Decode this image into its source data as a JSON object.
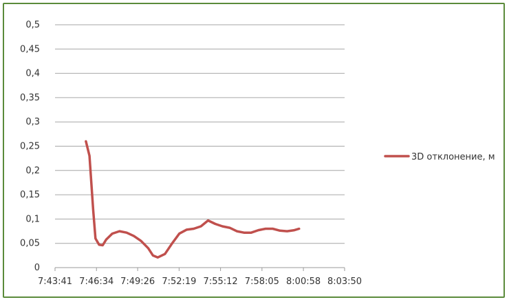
{
  "chart_data": {
    "type": "line",
    "title": "",
    "xlabel": "",
    "ylabel": "",
    "y_ticks": [
      "0",
      "0,05",
      "0,1",
      "0,15",
      "0,2",
      "0,25",
      "0,3",
      "0,35",
      "0,4",
      "0,45",
      "0,5"
    ],
    "x_ticks": [
      "7:43:41",
      "7:46:34",
      "7:49:26",
      "7:52:19",
      "7:55:12",
      "7:58:05",
      "8:00:58",
      "8:03:50"
    ],
    "ylim": [
      0,
      0.5
    ],
    "xlim": [
      "7:43:41",
      "8:03:50"
    ],
    "grid": "horizontal",
    "legend_position": "right",
    "series": [
      {
        "name": "3D отклонение,  м",
        "color": "#c0504d",
        "points": [
          [
            "7:45:50",
            0.26
          ],
          [
            "7:46:05",
            0.23
          ],
          [
            "7:46:20",
            0.12
          ],
          [
            "7:46:30",
            0.06
          ],
          [
            "7:46:45",
            0.047
          ],
          [
            "7:47:00",
            0.046
          ],
          [
            "7:47:15",
            0.058
          ],
          [
            "7:47:40",
            0.07
          ],
          [
            "7:48:10",
            0.075
          ],
          [
            "7:48:40",
            0.072
          ],
          [
            "7:49:10",
            0.065
          ],
          [
            "7:49:40",
            0.055
          ],
          [
            "7:50:10",
            0.04
          ],
          [
            "7:50:30",
            0.025
          ],
          [
            "7:50:50",
            0.021
          ],
          [
            "7:51:20",
            0.028
          ],
          [
            "7:51:50",
            0.05
          ],
          [
            "7:52:20",
            0.07
          ],
          [
            "7:52:50",
            0.078
          ],
          [
            "7:53:20",
            0.08
          ],
          [
            "7:53:50",
            0.085
          ],
          [
            "7:54:20",
            0.097
          ],
          [
            "7:54:50",
            0.09
          ],
          [
            "7:55:20",
            0.085
          ],
          [
            "7:55:50",
            0.082
          ],
          [
            "7:56:20",
            0.075
          ],
          [
            "7:56:50",
            0.072
          ],
          [
            "7:57:20",
            0.072
          ],
          [
            "7:57:50",
            0.077
          ],
          [
            "7:58:20",
            0.08
          ],
          [
            "7:58:50",
            0.08
          ],
          [
            "7:59:20",
            0.076
          ],
          [
            "7:59:50",
            0.075
          ],
          [
            "8:00:20",
            0.077
          ],
          [
            "8:00:40",
            0.08
          ]
        ]
      }
    ]
  }
}
